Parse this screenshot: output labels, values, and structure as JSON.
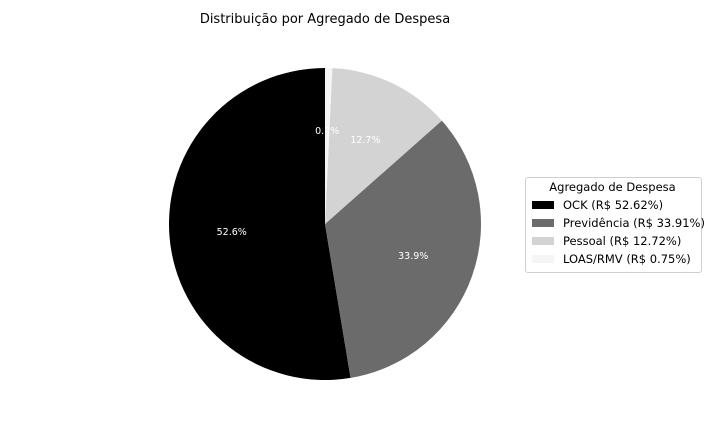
{
  "chart_data": {
    "type": "pie",
    "title": "Distribuição por Agregado de Despesa",
    "legend_title": "Agregado de Despesa",
    "legend_position": "right",
    "start_angle_deg": 90,
    "direction": "counterclockwise",
    "slices": [
      {
        "category": "OCK",
        "value": 52.62,
        "pct_label": "52.6%",
        "legend_label": "OCK (R$ 52.62%)",
        "color": "#000000"
      },
      {
        "category": "Previdência",
        "value": 33.91,
        "pct_label": "33.9%",
        "legend_label": "Previdência (R$ 33.91%)",
        "color": "#6b6b6b"
      },
      {
        "category": "Pessoal",
        "value": 12.72,
        "pct_label": "12.7%",
        "legend_label": "Pessoal (R$ 12.72%)",
        "color": "#d3d3d3"
      },
      {
        "category": "LOAS/RMV",
        "value": 0.75,
        "pct_label": "0.7%",
        "legend_label": "LOAS/RMV (R$ 0.75%)",
        "color": "#f5f5f5"
      }
    ]
  }
}
